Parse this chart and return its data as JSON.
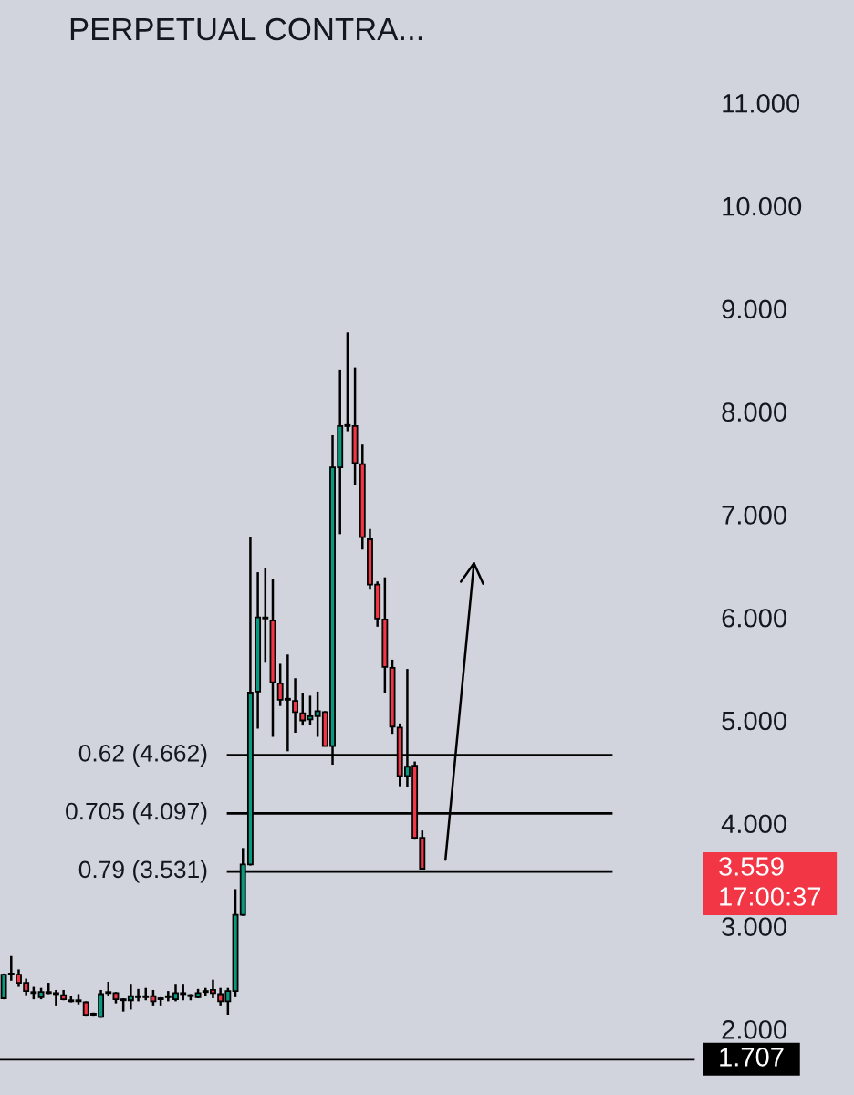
{
  "chart_data": {
    "type": "candlestick",
    "title": "PERPETUAL CONTRA...",
    "categories": [
      null,
      null,
      null,
      null,
      null,
      null,
      null,
      null,
      null,
      null,
      null,
      null,
      null,
      null,
      null,
      null,
      null,
      null,
      null,
      null,
      null,
      null,
      null,
      null,
      null,
      null,
      null,
      null,
      null,
      null,
      null,
      null,
      null,
      null,
      null,
      null,
      null,
      null,
      null,
      null,
      null,
      null,
      null,
      null,
      null,
      null,
      null,
      null,
      null,
      null,
      null,
      null,
      null,
      null,
      null,
      null,
      null,
      null,
      null,
      null,
      null,
      null,
      null,
      null,
      null,
      null,
      null,
      null,
      null,
      null,
      null,
      null,
      null,
      null,
      null,
      null,
      null,
      null,
      null,
      null,
      null,
      null,
      null,
      null,
      null,
      null,
      null,
      null,
      null,
      null,
      null,
      null,
      null,
      null
    ],
    "ohlc": [
      [
        2.3,
        2.54,
        2.29,
        2.53
      ],
      [
        2.53,
        2.71,
        2.47,
        2.54
      ],
      [
        2.53,
        2.58,
        2.41,
        2.45
      ],
      [
        2.45,
        2.49,
        2.33,
        2.37
      ],
      [
        2.36,
        2.41,
        2.29,
        2.35
      ],
      [
        2.31,
        2.4,
        2.29,
        2.36
      ],
      [
        2.35,
        2.45,
        2.34,
        2.36
      ],
      [
        2.35,
        2.38,
        2.23,
        2.34
      ],
      [
        2.33,
        2.38,
        2.28,
        2.29
      ],
      [
        2.28,
        2.32,
        2.26,
        2.27
      ],
      [
        2.27,
        2.34,
        2.24,
        2.28
      ],
      [
        2.26,
        2.27,
        2.13,
        2.14
      ],
      [
        2.14,
        2.16,
        2.13,
        2.15
      ],
      [
        2.12,
        2.38,
        2.11,
        2.34
      ],
      [
        2.35,
        2.46,
        2.32,
        2.36
      ],
      [
        2.35,
        2.36,
        2.25,
        2.29
      ],
      [
        2.29,
        2.3,
        2.17,
        2.28
      ],
      [
        2.28,
        2.44,
        2.19,
        2.32
      ],
      [
        2.32,
        2.39,
        2.27,
        2.31
      ],
      [
        2.31,
        2.4,
        2.28,
        2.32
      ],
      [
        2.32,
        2.38,
        2.23,
        2.27
      ],
      [
        2.3,
        2.31,
        2.23,
        2.29
      ],
      [
        2.31,
        2.37,
        2.27,
        2.32
      ],
      [
        2.29,
        2.44,
        2.27,
        2.35
      ],
      [
        2.35,
        2.44,
        2.28,
        2.34
      ],
      [
        2.33,
        2.34,
        2.28,
        2.32
      ],
      [
        2.31,
        2.39,
        2.3,
        2.35
      ],
      [
        2.36,
        2.4,
        2.32,
        2.37
      ],
      [
        2.38,
        2.48,
        2.3,
        2.35
      ],
      [
        2.34,
        2.4,
        2.23,
        2.27
      ],
      [
        2.27,
        2.4,
        2.14,
        2.37
      ],
      [
        2.37,
        3.36,
        2.31,
        3.11
      ],
      [
        3.11,
        3.76,
        3.1,
        3.6
      ],
      [
        3.6,
        6.78,
        3.59,
        5.27
      ],
      [
        5.28,
        6.44,
        4.92,
        6.0
      ],
      [
        5.99,
        6.48,
        5.56,
        6.0
      ],
      [
        5.97,
        6.37,
        4.84,
        5.37
      ],
      [
        5.36,
        5.55,
        5.14,
        5.2
      ],
      [
        5.2,
        5.64,
        4.7,
        5.21
      ],
      [
        5.19,
        5.41,
        4.88,
        5.08
      ],
      [
        5.07,
        5.27,
        4.95,
        5.0
      ],
      [
        5.01,
        5.24,
        4.96,
        5.04
      ],
      [
        5.04,
        5.28,
        4.84,
        5.09
      ],
      [
        5.08,
        5.09,
        4.75,
        4.75
      ],
      [
        4.75,
        7.77,
        4.57,
        7.46
      ],
      [
        7.46,
        8.41,
        6.81,
        7.86
      ],
      [
        7.86,
        8.77,
        7.81,
        7.87
      ],
      [
        7.86,
        8.43,
        7.29,
        7.5
      ],
      [
        7.49,
        7.68,
        6.66,
        6.78
      ],
      [
        6.76,
        6.86,
        6.27,
        6.32
      ],
      [
        6.32,
        6.35,
        5.91,
        5.99
      ],
      [
        5.98,
        6.39,
        5.27,
        5.52
      ],
      [
        5.51,
        5.59,
        4.87,
        4.94
      ],
      [
        4.93,
        4.97,
        4.36,
        4.46
      ],
      [
        4.46,
        5.5,
        4.35,
        4.55
      ],
      [
        4.56,
        4.6,
        3.85,
        3.86
      ],
      [
        3.86,
        3.93,
        3.55,
        3.559
      ],
      null,
      null,
      null,
      null,
      null,
      null,
      null,
      null,
      null,
      null,
      null,
      null,
      null,
      null,
      null,
      null,
      null,
      null,
      null,
      null,
      null,
      null,
      null,
      null,
      null,
      null,
      null,
      null,
      null,
      null,
      null,
      null,
      null,
      null,
      null,
      null,
      null
    ],
    "colors": [
      "#089981",
      "#089981",
      "#f23645",
      "#f23645",
      "#f23645",
      "#089981",
      "#089981",
      "#f23645",
      "#f23645",
      "#f23645",
      "#089981",
      "#f23645",
      "#089981",
      "#089981",
      "#089981",
      "#f23645",
      "#f23645",
      "#089981",
      "#f23645",
      "#089981",
      "#f23645",
      "#f23645",
      "#089981",
      "#089981",
      "#f23645",
      "#f23645",
      "#089981",
      "#089981",
      "#f23645",
      "#f23645",
      "#089981",
      "#089981",
      "#089981",
      "#089981",
      "#089981",
      "#089981",
      "#f23645",
      "#f23645",
      "#089981",
      "#f23645",
      "#f23645",
      "#089981",
      "#089981",
      "#f23645",
      "#089981",
      "#089981",
      "#089981",
      "#f23645",
      "#f23645",
      "#f23645",
      "#f23645",
      "#f23645",
      "#f23645",
      "#f23645",
      "#089981",
      "#f23645",
      "#f23645",
      null,
      null,
      null,
      null,
      null,
      null,
      null,
      null,
      null,
      null,
      null,
      null,
      null,
      null,
      null,
      null,
      null,
      null,
      null,
      null,
      null,
      null,
      null,
      null,
      null,
      null,
      null,
      null,
      null,
      null,
      null,
      null,
      null,
      null,
      null,
      null,
      null
    ],
    "ylim": [
      1.36,
      12.0
    ],
    "yticks": [
      {
        "value": 2,
        "label": "2.000"
      },
      {
        "value": 3,
        "label": "3.000"
      },
      {
        "value": 4,
        "label": "4.000"
      },
      {
        "value": 5,
        "label": "5.000"
      },
      {
        "value": 6,
        "label": "6.000"
      },
      {
        "value": 7,
        "label": "7.000"
      },
      {
        "value": 8,
        "label": "8.000"
      },
      {
        "value": 9,
        "label": "9.000"
      },
      {
        "value": 10,
        "label": "10.000"
      },
      {
        "value": 11,
        "label": "11.000"
      }
    ],
    "tick_labels": "y",
    "ref_lines": [
      {
        "axis": "y",
        "value": 4.662,
        "label": "0.62 (4.662)",
        "color": "#000000"
      },
      {
        "axis": "y",
        "value": 4.097,
        "label": "0.705 (4.097)",
        "color": "#000000"
      },
      {
        "axis": "y",
        "value": 3.531,
        "label": "0.79 (3.531)",
        "color": "#000000"
      },
      {
        "axis": "y",
        "value": 1.707,
        "label": "1.707",
        "color": "#000000"
      }
    ],
    "annotations": [
      "3.559",
      "17:00:37"
    ]
  }
}
